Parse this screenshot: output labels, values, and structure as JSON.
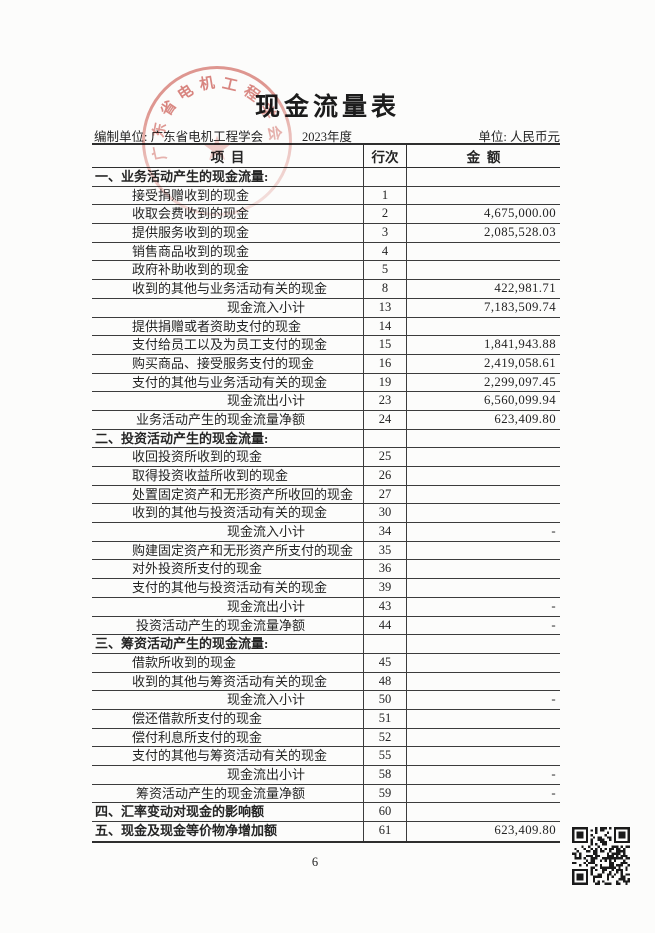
{
  "page": {
    "title": "现金流量表",
    "page_number": "6"
  },
  "meta": {
    "prepared_by": "编制单位: 广东省电机工程学会",
    "period": "2023年度",
    "unit": "单位: 人民币元"
  },
  "table": {
    "headers": {
      "item": "项  目",
      "line_no": "行次",
      "amount": "金  额"
    },
    "rows": [
      {
        "type": "section",
        "label": "一、业务活动产生的现金流量:",
        "line": "",
        "amount": ""
      },
      {
        "type": "item",
        "label": "接受捐赠收到的现金",
        "line": "1",
        "amount": ""
      },
      {
        "type": "item",
        "label": "收取会费收到的现金",
        "line": "2",
        "amount": "4,675,000.00"
      },
      {
        "type": "item",
        "label": "提供服务收到的现金",
        "line": "3",
        "amount": "2,085,528.03"
      },
      {
        "type": "item",
        "label": "销售商品收到的现金",
        "line": "4",
        "amount": ""
      },
      {
        "type": "item",
        "label": "政府补助收到的现金",
        "line": "5",
        "amount": ""
      },
      {
        "type": "item",
        "label": "收到的其他与业务活动有关的现金",
        "line": "8",
        "amount": "422,981.71"
      },
      {
        "type": "subtotal",
        "label": "现金流入小计",
        "line": "13",
        "amount": "7,183,509.74"
      },
      {
        "type": "item",
        "label": "提供捐赠或者资助支付的现金",
        "line": "14",
        "amount": ""
      },
      {
        "type": "item",
        "label": "支付给员工以及为员工支付的现金",
        "line": "15",
        "amount": "1,841,943.88"
      },
      {
        "type": "item",
        "label": "购买商品、接受服务支付的现金",
        "line": "16",
        "amount": "2,419,058.61"
      },
      {
        "type": "item",
        "label": "支付的其他与业务活动有关的现金",
        "line": "19",
        "amount": "2,299,097.45"
      },
      {
        "type": "subtotal",
        "label": "现金流出小计",
        "line": "23",
        "amount": "6,560,099.94"
      },
      {
        "type": "subtotal",
        "label": "业务活动产生的现金流量净额",
        "line": "24",
        "amount": "623,409.80"
      },
      {
        "type": "section",
        "label": "二、投资活动产生的现金流量:",
        "line": "",
        "amount": ""
      },
      {
        "type": "item",
        "label": "收回投资所收到的现金",
        "line": "25",
        "amount": ""
      },
      {
        "type": "item",
        "label": "取得投资收益所收到的现金",
        "line": "26",
        "amount": ""
      },
      {
        "type": "item",
        "label": "处置固定资产和无形资产所收回的现金",
        "line": "27",
        "amount": ""
      },
      {
        "type": "item",
        "label": "收到的其他与投资活动有关的现金",
        "line": "30",
        "amount": ""
      },
      {
        "type": "subtotal",
        "label": "现金流入小计",
        "line": "34",
        "amount": "-"
      },
      {
        "type": "item",
        "label": "购建固定资产和无形资产所支付的现金",
        "line": "35",
        "amount": ""
      },
      {
        "type": "item",
        "label": "对外投资所支付的现金",
        "line": "36",
        "amount": ""
      },
      {
        "type": "item",
        "label": "支付的其他与投资活动有关的现金",
        "line": "39",
        "amount": ""
      },
      {
        "type": "subtotal",
        "label": "现金流出小计",
        "line": "43",
        "amount": "-"
      },
      {
        "type": "subtotal",
        "label": "投资活动产生的现金流量净额",
        "line": "44",
        "amount": "-"
      },
      {
        "type": "section",
        "label": "三、筹资活动产生的现金流量:",
        "line": "",
        "amount": ""
      },
      {
        "type": "item",
        "label": "借款所收到的现金",
        "line": "45",
        "amount": ""
      },
      {
        "type": "item",
        "label": "收到的其他与筹资活动有关的现金",
        "line": "48",
        "amount": ""
      },
      {
        "type": "subtotal",
        "label": "现金流入小计",
        "line": "50",
        "amount": "-"
      },
      {
        "type": "item",
        "label": "偿还借款所支付的现金",
        "line": "51",
        "amount": ""
      },
      {
        "type": "item",
        "label": "偿付利息所支付的现金",
        "line": "52",
        "amount": ""
      },
      {
        "type": "item",
        "label": "支付的其他与筹资活动有关的现金",
        "line": "55",
        "amount": ""
      },
      {
        "type": "subtotal",
        "label": "现金流出小计",
        "line": "58",
        "amount": "-"
      },
      {
        "type": "subtotal",
        "label": "筹资活动产生的现金流量净额",
        "line": "59",
        "amount": "-"
      },
      {
        "type": "total",
        "label": "四、汇率变动对现金的影响额",
        "line": "60",
        "amount": ""
      },
      {
        "type": "total",
        "label": "五、现金及现金等价物净增加额",
        "line": "61",
        "amount": "623,409.80"
      }
    ]
  },
  "stamp": {
    "text": "广东省电机工程学会",
    "star": "★",
    "color": "#c63a2e"
  },
  "qr": {
    "color": "#1a1a1a"
  }
}
